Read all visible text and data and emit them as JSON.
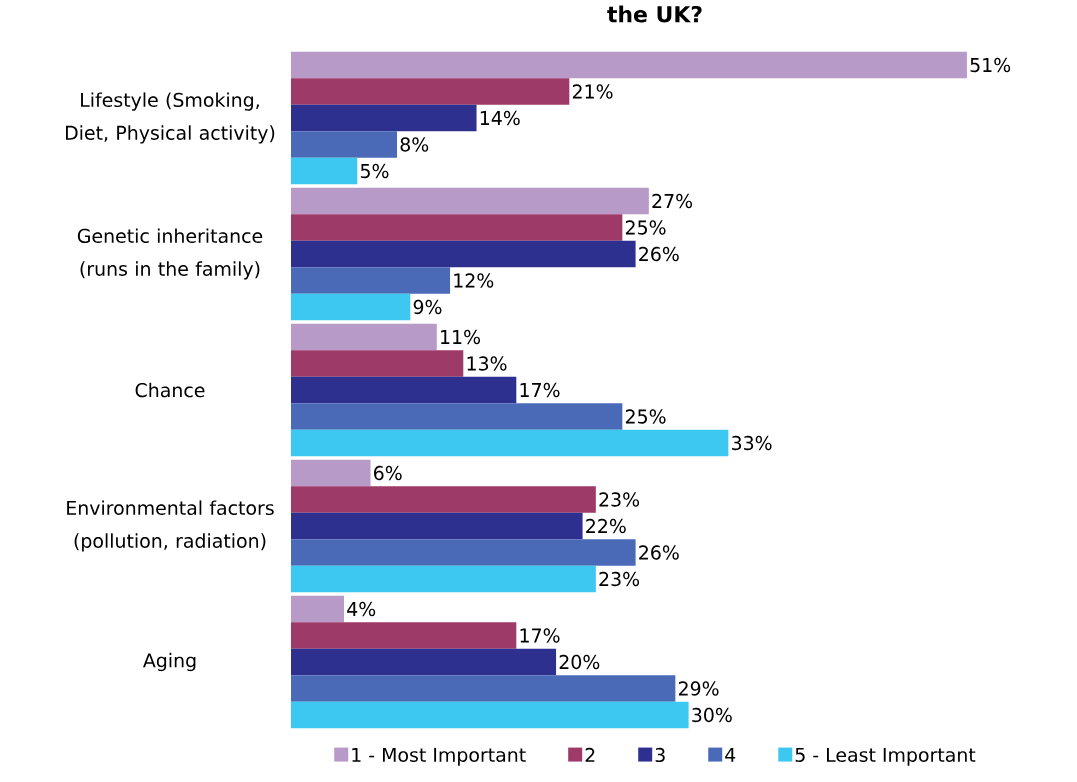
{
  "chart_data": {
    "type": "bar",
    "orientation": "horizontal",
    "title": "the UK?",
    "categories": [
      "Lifestyle (Smoking, Diet, Physical activity)",
      "Genetic inheritance (runs in the family)",
      "Chance",
      "Environmental factors (pollution, radiation)",
      "Aging"
    ],
    "series": [
      {
        "name": "1 - Most Important",
        "color": "#b89ac8",
        "values": [
          51,
          27,
          11,
          6,
          4
        ],
        "value_labels": [
          "51%",
          "27%",
          "11%",
          "6%",
          "4%"
        ]
      },
      {
        "name": "2",
        "color": "#9e3a68",
        "values": [
          21,
          25,
          13,
          23,
          17
        ],
        "value_labels": [
          "21%",
          "25%",
          "13%",
          "23%",
          "17%"
        ]
      },
      {
        "name": "3",
        "color": "#2e3090",
        "values": [
          14,
          26,
          17,
          22,
          20
        ],
        "value_labels": [
          "14%",
          "26%",
          "17%",
          "22%",
          "20%"
        ]
      },
      {
        "name": "4",
        "color": "#4a6ab8",
        "values": [
          8,
          12,
          25,
          26,
          29
        ],
        "value_labels": [
          "8%",
          "12%",
          "25%",
          "26%",
          "29%"
        ]
      },
      {
        "name": "5 - Least Important",
        "color": "#3cc8f0",
        "values": [
          5,
          9,
          33,
          23,
          30
        ],
        "value_labels": [
          "5%",
          "9%",
          "33%",
          "23%",
          "30%"
        ]
      }
    ],
    "legend": "bottom"
  }
}
